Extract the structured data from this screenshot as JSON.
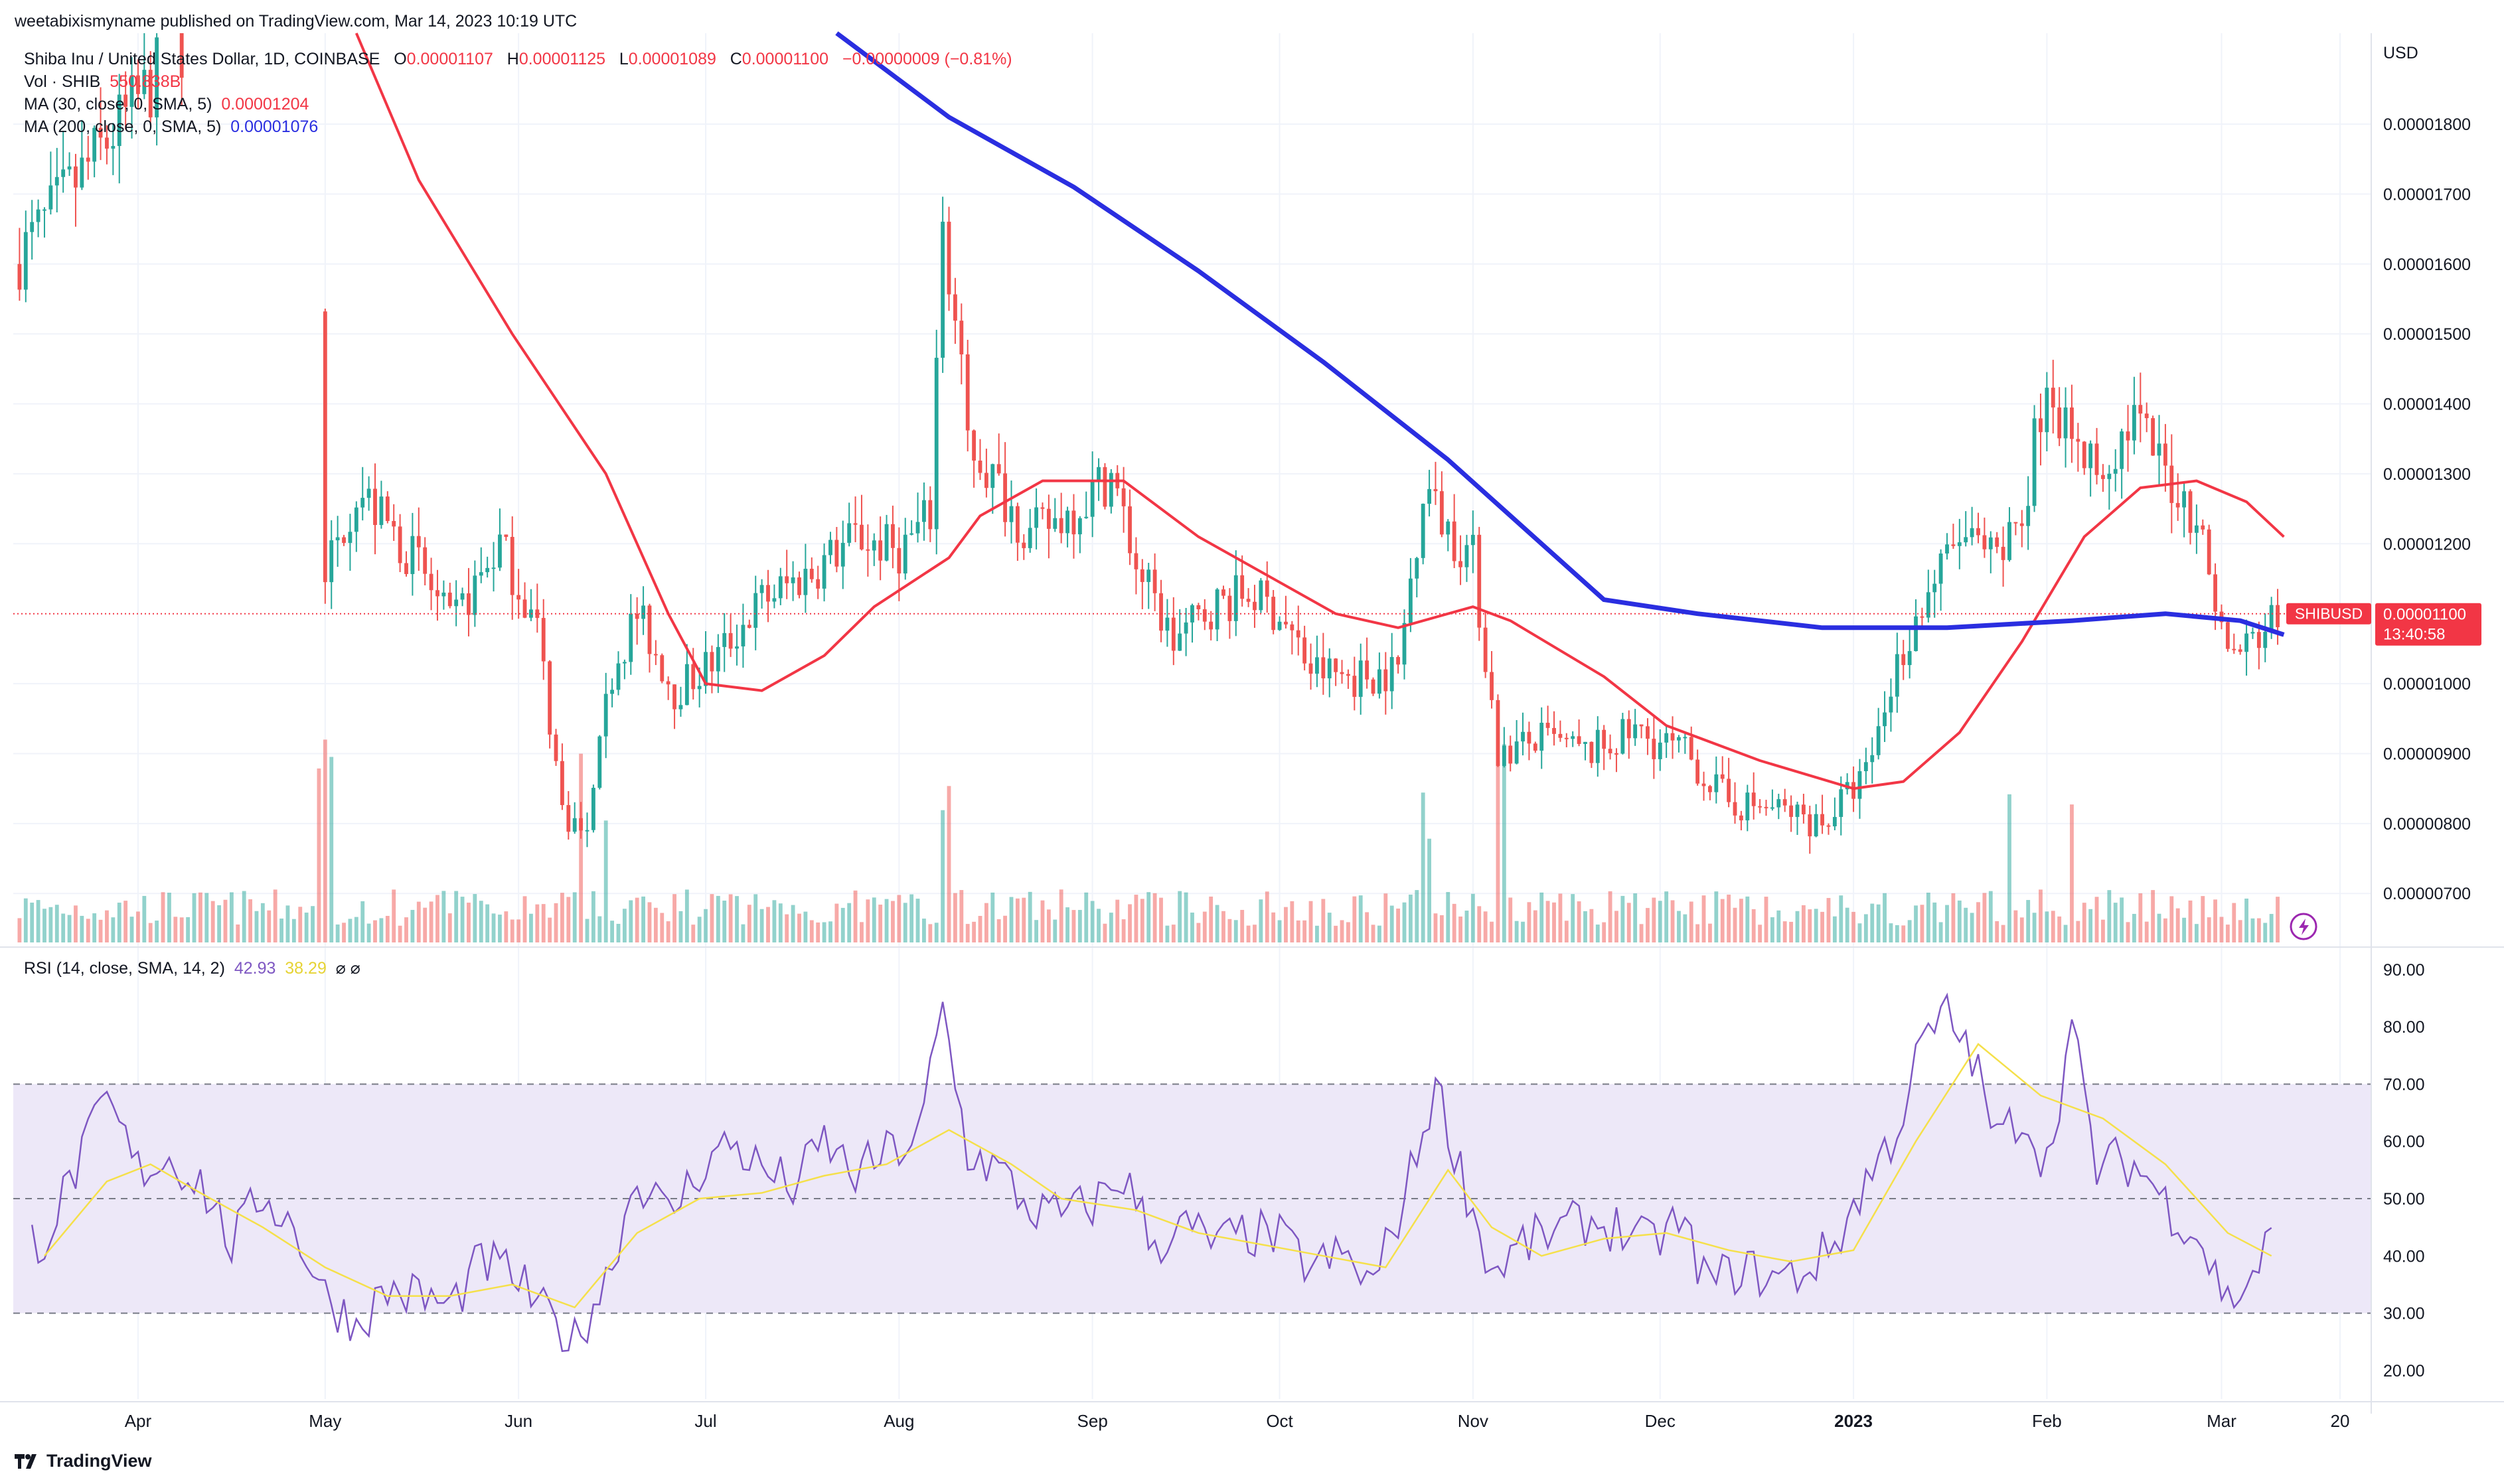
{
  "header": {
    "published": "weetabixismyname published on TradingView.com, Mar 14, 2023 10:19 UTC"
  },
  "legend": {
    "symbol": "Shiba Inu / United States Dollar, 1D, COINBASE",
    "o_label": "O",
    "o_value": "0.00001107",
    "h_label": "H",
    "h_value": "0.00001125",
    "l_label": "L",
    "l_value": "0.00001089",
    "c_label": "C",
    "c_value": "0.00001100",
    "change": "−0.00000009 (−0.81%)",
    "vol_label": "Vol · SHIB",
    "vol_value": "550.838B",
    "ma30_label": "MA (30, close, 0, SMA, 5)",
    "ma30_value": "0.00001204",
    "ma200_label": "MA (200, close, 0, SMA, 5)",
    "ma200_value": "0.00001076"
  },
  "rsi_legend": {
    "label": "RSI (14, close, SMA, 14, 2)",
    "rsi_value": "42.93",
    "sma_value": "38.29",
    "icons": "⌀ ⌀"
  },
  "price_tag": {
    "symbol": "SHIBUSD",
    "price": "0.00001100",
    "countdown": "13:40:58"
  },
  "footer": {
    "brand": "TradingView"
  },
  "colors": {
    "up": "#26a69a",
    "down": "#ef5350",
    "ma30": "#f23645",
    "ma200": "#2a2ee0",
    "rsi": "#7e57c2",
    "rsi_sma": "#f5e04a",
    "rsi_band": "#ede8f8"
  },
  "chart_data": {
    "type": "candlestick",
    "title": "Shiba Inu / United States Dollar, 1D, COINBASE",
    "price_axis_unit": "USD",
    "price_ticks": [
      "0.00001800",
      "0.00001700",
      "0.00001600",
      "0.00001500",
      "0.00001400",
      "0.00001300",
      "0.00001200",
      "0.00001000",
      "0.00000900",
      "0.00000800",
      "0.00000700"
    ],
    "ylim": [
      6.3e-06,
      1.93e-05
    ],
    "x_labels": [
      "Apr",
      "May",
      "Jun",
      "Jul",
      "Aug",
      "Sep",
      "Oct",
      "Nov",
      "Dec",
      "2023",
      "Feb",
      "Mar",
      "20"
    ],
    "x_label_days": [
      20,
      50,
      81,
      111,
      142,
      173,
      203,
      234,
      264,
      295,
      326,
      354,
      373
    ],
    "current_price": 1.1e-05,
    "series": [
      {
        "name": "MA (30, close, 0, SMA, 5)",
        "role": "ma30",
        "points": [
          [
            55,
            1.95e-05
          ],
          [
            65,
            1.72e-05
          ],
          [
            80,
            1.5e-05
          ],
          [
            95,
            1.3e-05
          ],
          [
            105,
            1.1e-05
          ],
          [
            111,
            1e-05
          ],
          [
            120,
            9.9e-06
          ],
          [
            130,
            1.04e-05
          ],
          [
            138,
            1.11e-05
          ],
          [
            150,
            1.18e-05
          ],
          [
            155,
            1.24e-05
          ],
          [
            165,
            1.29e-05
          ],
          [
            178,
            1.29e-05
          ],
          [
            190,
            1.21e-05
          ],
          [
            200,
            1.16e-05
          ],
          [
            212,
            1.1e-05
          ],
          [
            222,
            1.08e-05
          ],
          [
            234,
            1.11e-05
          ],
          [
            240,
            1.09e-05
          ],
          [
            255,
            1.01e-05
          ],
          [
            265,
            9.4e-06
          ],
          [
            280,
            8.9e-06
          ],
          [
            295,
            8.5e-06
          ],
          [
            303,
            8.6e-06
          ],
          [
            312,
            9.3e-06
          ],
          [
            322,
            1.06e-05
          ],
          [
            332,
            1.21e-05
          ],
          [
            341,
            1.28e-05
          ],
          [
            350,
            1.29e-05
          ],
          [
            358,
            1.26e-05
          ],
          [
            364,
            1.21e-05
          ]
        ]
      },
      {
        "name": "MA (200, close, 0, SMA, 5)",
        "role": "ma200",
        "points": [
          [
            132,
            1.93e-05
          ],
          [
            150,
            1.81e-05
          ],
          [
            170,
            1.71e-05
          ],
          [
            190,
            1.59e-05
          ],
          [
            210,
            1.46e-05
          ],
          [
            230,
            1.32e-05
          ],
          [
            245,
            1.2e-05
          ],
          [
            255,
            1.12e-05
          ],
          [
            270,
            1.1e-05
          ],
          [
            290,
            1.08e-05
          ],
          [
            310,
            1.08e-05
          ],
          [
            330,
            1.09e-05
          ],
          [
            345,
            1.1e-05
          ],
          [
            357,
            1.09e-05
          ],
          [
            364,
            1.07e-05
          ]
        ]
      }
    ],
    "rsi": {
      "ylim": [
        15,
        93
      ],
      "ticks": [
        "90.00",
        "80.00",
        "70.00",
        "60.00",
        "50.00",
        "40.00",
        "30.00",
        "20.00"
      ],
      "band": [
        30,
        70
      ],
      "middle": 50,
      "rsi_points": [
        [
          5,
          43
        ],
        [
          10,
          55
        ],
        [
          15,
          67
        ],
        [
          20,
          55
        ],
        [
          25,
          57
        ],
        [
          30,
          53
        ],
        [
          35,
          42
        ],
        [
          40,
          51
        ],
        [
          45,
          45
        ],
        [
          50,
          33
        ],
        [
          55,
          28
        ],
        [
          60,
          34
        ],
        [
          65,
          33
        ],
        [
          70,
          31
        ],
        [
          75,
          39
        ],
        [
          80,
          37
        ],
        [
          85,
          30
        ],
        [
          90,
          25
        ],
        [
          95,
          36
        ],
        [
          100,
          54
        ],
        [
          105,
          47
        ],
        [
          110,
          55
        ],
        [
          115,
          60
        ],
        [
          120,
          55
        ],
        [
          125,
          52
        ],
        [
          130,
          60
        ],
        [
          135,
          54
        ],
        [
          140,
          58
        ],
        [
          145,
          60
        ],
        [
          149,
          83
        ],
        [
          153,
          58
        ],
        [
          158,
          55
        ],
        [
          163,
          48
        ],
        [
          168,
          47
        ],
        [
          173,
          49
        ],
        [
          178,
          54
        ],
        [
          183,
          42
        ],
        [
          188,
          45
        ],
        [
          193,
          42
        ],
        [
          198,
          44
        ],
        [
          203,
          43
        ],
        [
          208,
          38
        ],
        [
          213,
          40
        ],
        [
          218,
          35
        ],
        [
          223,
          50
        ],
        [
          228,
          70
        ],
        [
          232,
          55
        ],
        [
          237,
          37
        ],
        [
          242,
          42
        ],
        [
          247,
          44
        ],
        [
          252,
          46
        ],
        [
          257,
          45
        ],
        [
          262,
          42
        ],
        [
          267,
          46
        ],
        [
          272,
          35
        ],
        [
          277,
          38
        ],
        [
          282,
          36
        ],
        [
          287,
          37
        ],
        [
          292,
          42
        ],
        [
          297,
          53
        ],
        [
          302,
          62
        ],
        [
          306,
          77
        ],
        [
          310,
          82
        ],
        [
          314,
          75
        ],
        [
          318,
          60
        ],
        [
          322,
          65
        ],
        [
          326,
          56
        ],
        [
          330,
          80
        ],
        [
          334,
          55
        ],
        [
          338,
          57
        ],
        [
          342,
          54
        ],
        [
          346,
          48
        ],
        [
          350,
          44
        ],
        [
          355,
          32
        ],
        [
          358,
          35
        ],
        [
          362,
          43
        ]
      ],
      "sma_points": [
        [
          5,
          40
        ],
        [
          15,
          53
        ],
        [
          22,
          56
        ],
        [
          30,
          51
        ],
        [
          40,
          45
        ],
        [
          50,
          38
        ],
        [
          60,
          33
        ],
        [
          70,
          33
        ],
        [
          80,
          35
        ],
        [
          90,
          31
        ],
        [
          100,
          44
        ],
        [
          110,
          50
        ],
        [
          120,
          51
        ],
        [
          130,
          54
        ],
        [
          140,
          56
        ],
        [
          150,
          62
        ],
        [
          160,
          56
        ],
        [
          168,
          50
        ],
        [
          180,
          48
        ],
        [
          190,
          44
        ],
        [
          200,
          42
        ],
        [
          210,
          40
        ],
        [
          220,
          38
        ],
        [
          230,
          55
        ],
        [
          237,
          45
        ],
        [
          245,
          40
        ],
        [
          255,
          43
        ],
        [
          265,
          44
        ],
        [
          275,
          41
        ],
        [
          285,
          39
        ],
        [
          295,
          41
        ],
        [
          305,
          60
        ],
        [
          315,
          77
        ],
        [
          325,
          68
        ],
        [
          335,
          64
        ],
        [
          345,
          56
        ],
        [
          355,
          44
        ],
        [
          362,
          40
        ]
      ]
    }
  }
}
